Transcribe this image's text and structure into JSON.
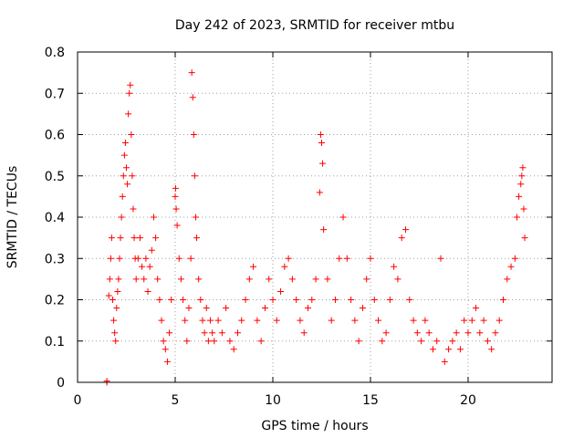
{
  "chart_data": {
    "type": "scatter",
    "title": "Day 242 of 2023, SRMTID for receiver mtbu",
    "xlabel": "GPS time / hours",
    "ylabel": "SRMTID / TECUs",
    "xlim": [
      0,
      24.3
    ],
    "ylim": [
      0,
      0.8
    ],
    "xticks": [
      "0",
      "5",
      "10",
      "15",
      "20"
    ],
    "xtick_values": [
      0,
      5,
      10,
      15,
      20
    ],
    "yticks": [
      "0",
      "0.1",
      "0.2",
      "0.3",
      "0.4",
      "0.5",
      "0.6",
      "0.7",
      "0.8"
    ],
    "ytick_values": [
      0,
      0.1,
      0.2,
      0.3,
      0.4,
      0.5,
      0.6,
      0.7,
      0.8
    ],
    "grid": true,
    "marker": "+",
    "series": [
      {
        "name": "SRMTID",
        "color": "#ff0000",
        "points": [
          [
            1.5,
            0.0
          ],
          [
            1.5,
            0.003
          ],
          [
            1.6,
            0.21
          ],
          [
            1.65,
            0.25
          ],
          [
            1.7,
            0.3
          ],
          [
            1.75,
            0.35
          ],
          [
            1.8,
            0.2
          ],
          [
            1.85,
            0.15
          ],
          [
            1.9,
            0.12
          ],
          [
            1.95,
            0.1
          ],
          [
            2.0,
            0.18
          ],
          [
            2.05,
            0.22
          ],
          [
            2.1,
            0.25
          ],
          [
            2.15,
            0.3
          ],
          [
            2.2,
            0.35
          ],
          [
            2.25,
            0.4
          ],
          [
            2.3,
            0.45
          ],
          [
            2.35,
            0.5
          ],
          [
            2.4,
            0.55
          ],
          [
            2.45,
            0.58
          ],
          [
            2.5,
            0.52
          ],
          [
            2.55,
            0.48
          ],
          [
            2.6,
            0.65
          ],
          [
            2.65,
            0.7
          ],
          [
            2.7,
            0.72
          ],
          [
            2.75,
            0.6
          ],
          [
            2.8,
            0.5
          ],
          [
            2.85,
            0.42
          ],
          [
            2.9,
            0.35
          ],
          [
            2.95,
            0.3
          ],
          [
            3.0,
            0.25
          ],
          [
            3.1,
            0.3
          ],
          [
            3.2,
            0.35
          ],
          [
            3.3,
            0.28
          ],
          [
            3.4,
            0.25
          ],
          [
            3.5,
            0.3
          ],
          [
            3.6,
            0.22
          ],
          [
            3.7,
            0.28
          ],
          [
            3.8,
            0.32
          ],
          [
            3.9,
            0.4
          ],
          [
            4.0,
            0.35
          ],
          [
            4.1,
            0.25
          ],
          [
            4.2,
            0.2
          ],
          [
            4.3,
            0.15
          ],
          [
            4.4,
            0.1
          ],
          [
            4.5,
            0.08
          ],
          [
            4.6,
            0.05
          ],
          [
            4.7,
            0.12
          ],
          [
            4.8,
            0.2
          ],
          [
            5.0,
            0.45
          ],
          [
            5.02,
            0.47
          ],
          [
            5.05,
            0.42
          ],
          [
            5.1,
            0.38
          ],
          [
            5.2,
            0.3
          ],
          [
            5.3,
            0.25
          ],
          [
            5.4,
            0.2
          ],
          [
            5.5,
            0.15
          ],
          [
            5.6,
            0.1
          ],
          [
            5.7,
            0.18
          ],
          [
            5.8,
            0.3
          ],
          [
            5.85,
            0.75
          ],
          [
            5.9,
            0.69
          ],
          [
            5.95,
            0.6
          ],
          [
            6.0,
            0.5
          ],
          [
            6.05,
            0.4
          ],
          [
            6.1,
            0.35
          ],
          [
            6.2,
            0.25
          ],
          [
            6.3,
            0.2
          ],
          [
            6.4,
            0.15
          ],
          [
            6.5,
            0.12
          ],
          [
            6.6,
            0.18
          ],
          [
            6.7,
            0.1
          ],
          [
            6.8,
            0.15
          ],
          [
            6.9,
            0.12
          ],
          [
            7.0,
            0.1
          ],
          [
            7.2,
            0.15
          ],
          [
            7.4,
            0.12
          ],
          [
            7.6,
            0.18
          ],
          [
            7.8,
            0.1
          ],
          [
            8.0,
            0.08
          ],
          [
            8.2,
            0.12
          ],
          [
            8.4,
            0.15
          ],
          [
            8.6,
            0.2
          ],
          [
            8.8,
            0.25
          ],
          [
            9.0,
            0.28
          ],
          [
            9.2,
            0.15
          ],
          [
            9.4,
            0.1
          ],
          [
            9.6,
            0.18
          ],
          [
            9.8,
            0.25
          ],
          [
            10.0,
            0.2
          ],
          [
            10.2,
            0.15
          ],
          [
            10.4,
            0.22
          ],
          [
            10.6,
            0.28
          ],
          [
            10.8,
            0.3
          ],
          [
            11.0,
            0.25
          ],
          [
            11.2,
            0.2
          ],
          [
            11.4,
            0.15
          ],
          [
            11.6,
            0.12
          ],
          [
            11.8,
            0.18
          ],
          [
            12.0,
            0.2
          ],
          [
            12.2,
            0.25
          ],
          [
            12.4,
            0.46
          ],
          [
            12.45,
            0.6
          ],
          [
            12.5,
            0.58
          ],
          [
            12.55,
            0.53
          ],
          [
            12.6,
            0.37
          ],
          [
            12.8,
            0.25
          ],
          [
            13.0,
            0.15
          ],
          [
            13.2,
            0.2
          ],
          [
            13.4,
            0.3
          ],
          [
            13.6,
            0.4
          ],
          [
            13.8,
            0.3
          ],
          [
            14.0,
            0.2
          ],
          [
            14.2,
            0.15
          ],
          [
            14.4,
            0.1
          ],
          [
            14.6,
            0.18
          ],
          [
            14.8,
            0.25
          ],
          [
            15.0,
            0.3
          ],
          [
            15.2,
            0.2
          ],
          [
            15.4,
            0.15
          ],
          [
            15.6,
            0.1
          ],
          [
            15.8,
            0.12
          ],
          [
            16.0,
            0.2
          ],
          [
            16.2,
            0.28
          ],
          [
            16.4,
            0.25
          ],
          [
            16.6,
            0.35
          ],
          [
            16.8,
            0.37
          ],
          [
            17.0,
            0.2
          ],
          [
            17.2,
            0.15
          ],
          [
            17.4,
            0.12
          ],
          [
            17.6,
            0.1
          ],
          [
            17.8,
            0.15
          ],
          [
            18.0,
            0.12
          ],
          [
            18.2,
            0.08
          ],
          [
            18.4,
            0.1
          ],
          [
            18.6,
            0.3
          ],
          [
            18.8,
            0.05
          ],
          [
            19.0,
            0.08
          ],
          [
            19.2,
            0.1
          ],
          [
            19.4,
            0.12
          ],
          [
            19.6,
            0.08
          ],
          [
            19.8,
            0.15
          ],
          [
            20.0,
            0.12
          ],
          [
            20.2,
            0.15
          ],
          [
            20.4,
            0.18
          ],
          [
            20.6,
            0.12
          ],
          [
            20.8,
            0.15
          ],
          [
            21.0,
            0.1
          ],
          [
            21.2,
            0.08
          ],
          [
            21.4,
            0.12
          ],
          [
            21.6,
            0.15
          ],
          [
            21.8,
            0.2
          ],
          [
            22.0,
            0.25
          ],
          [
            22.2,
            0.28
          ],
          [
            22.4,
            0.3
          ],
          [
            22.5,
            0.4
          ],
          [
            22.6,
            0.45
          ],
          [
            22.7,
            0.48
          ],
          [
            22.75,
            0.5
          ],
          [
            22.8,
            0.52
          ],
          [
            22.85,
            0.42
          ],
          [
            22.9,
            0.35
          ]
        ]
      }
    ]
  }
}
